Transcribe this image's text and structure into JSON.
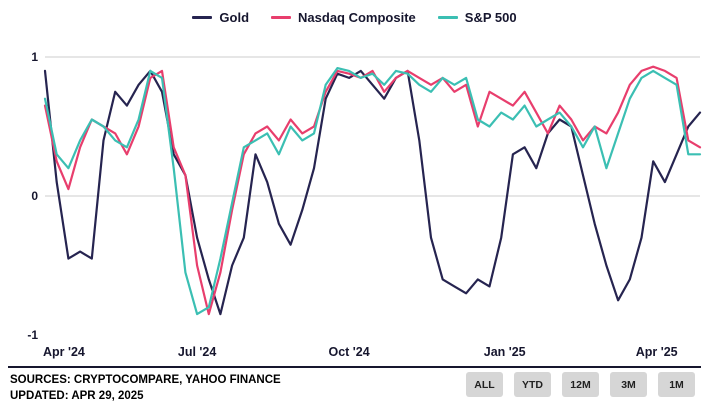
{
  "chart_data": {
    "type": "line",
    "title": "",
    "legend_position": "top-center",
    "x_unit": "weeks since Apr 2024",
    "x_range_weeks": [
      0,
      56
    ],
    "x_axis": {
      "labels": [
        "Apr '24",
        "Jul '24",
        "Oct '24",
        "Jan '25",
        "Apr '25"
      ],
      "tick_weeks": [
        0,
        13,
        26,
        39.3,
        52.3
      ]
    },
    "y_axis": {
      "ticks": [
        1,
        0,
        -1
      ],
      "gridlines": [
        1,
        0
      ],
      "range": [
        -1,
        1
      ]
    },
    "series": [
      {
        "name": "Gold",
        "color": "#262450",
        "values": [
          0.9,
          0.1,
          -0.45,
          -0.4,
          -0.45,
          0.4,
          0.75,
          0.65,
          0.8,
          0.9,
          0.75,
          0.3,
          0.15,
          -0.3,
          -0.6,
          -0.85,
          -0.5,
          -0.3,
          0.3,
          0.1,
          -0.2,
          -0.35,
          -0.1,
          0.2,
          0.7,
          0.88,
          0.85,
          0.9,
          0.8,
          0.7,
          0.85,
          0.9,
          0.4,
          -0.3,
          -0.6,
          -0.65,
          -0.7,
          -0.6,
          -0.65,
          -0.3,
          0.3,
          0.35,
          0.2,
          0.45,
          0.55,
          0.5,
          0.15,
          -0.2,
          -0.5,
          -0.75,
          -0.6,
          -0.3,
          0.25,
          0.1,
          0.3,
          0.5,
          0.6
        ]
      },
      {
        "name": "Nasdaq Composite",
        "color": "#e83e6d",
        "values": [
          0.65,
          0.25,
          0.05,
          0.35,
          0.55,
          0.5,
          0.45,
          0.3,
          0.5,
          0.85,
          0.9,
          0.35,
          0.15,
          -0.5,
          -0.85,
          -0.55,
          -0.1,
          0.3,
          0.45,
          0.5,
          0.4,
          0.55,
          0.45,
          0.5,
          0.75,
          0.9,
          0.88,
          0.85,
          0.9,
          0.75,
          0.85,
          0.9,
          0.85,
          0.8,
          0.85,
          0.75,
          0.8,
          0.5,
          0.75,
          0.7,
          0.65,
          0.75,
          0.6,
          0.45,
          0.65,
          0.55,
          0.4,
          0.5,
          0.45,
          0.6,
          0.8,
          0.9,
          0.93,
          0.9,
          0.85,
          0.4,
          0.35
        ]
      },
      {
        "name": "S&P 500",
        "color": "#3bbfb3",
        "values": [
          0.7,
          0.3,
          0.2,
          0.4,
          0.55,
          0.5,
          0.4,
          0.35,
          0.55,
          0.9,
          0.85,
          0.2,
          -0.55,
          -0.85,
          -0.8,
          -0.45,
          -0.05,
          0.35,
          0.4,
          0.45,
          0.3,
          0.5,
          0.4,
          0.45,
          0.8,
          0.92,
          0.9,
          0.85,
          0.88,
          0.8,
          0.9,
          0.88,
          0.8,
          0.75,
          0.85,
          0.8,
          0.85,
          0.55,
          0.5,
          0.6,
          0.55,
          0.65,
          0.5,
          0.55,
          0.6,
          0.5,
          0.35,
          0.5,
          0.2,
          0.45,
          0.7,
          0.85,
          0.9,
          0.85,
          0.8,
          0.3,
          0.3
        ]
      }
    ]
  },
  "footer": {
    "sources_line1": "SOURCES: CRYPTOCOMPARE, YAHOO FINANCE",
    "sources_line2": "UPDATED: APR 29, 2025",
    "range_buttons": [
      "ALL",
      "YTD",
      "12M",
      "3M",
      "1M"
    ]
  },
  "colors": {
    "background": "#ffffff",
    "gridline": "#cccccc",
    "text": "#16162e",
    "separator": "#16162e",
    "button_bg": "#d6d6d6"
  }
}
